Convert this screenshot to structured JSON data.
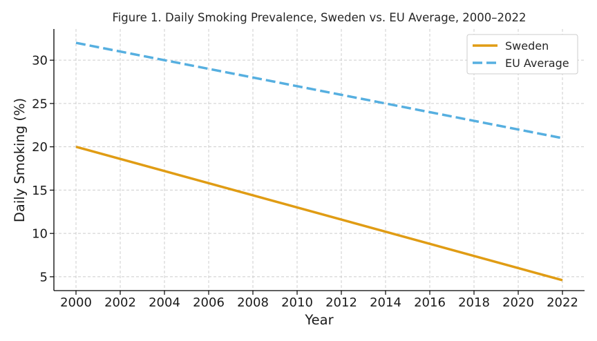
{
  "chart_data": {
    "type": "line",
    "title": "Figure 1. Daily Smoking Prevalence, Sweden vs. EU Average, 2000–2022",
    "xlabel": "Year",
    "ylabel": "Daily Smoking (%)",
    "xlim": [
      1999,
      2023
    ],
    "ylim": [
      3.4,
      33.6
    ],
    "xticks": [
      2000,
      2002,
      2004,
      2006,
      2008,
      2010,
      2012,
      2014,
      2016,
      2018,
      2020,
      2022
    ],
    "yticks": [
      5,
      10,
      15,
      20,
      25,
      30
    ],
    "grid": true,
    "legend_position": "top-right",
    "series": [
      {
        "name": "Sweden",
        "color": "#e09c14",
        "style": "solid",
        "x": [
          2000,
          2022
        ],
        "y": [
          20.0,
          4.6
        ]
      },
      {
        "name": "EU Average",
        "color": "#56afe0",
        "style": "dashed",
        "x": [
          2000,
          2022
        ],
        "y": [
          32.0,
          21.0
        ]
      }
    ]
  }
}
